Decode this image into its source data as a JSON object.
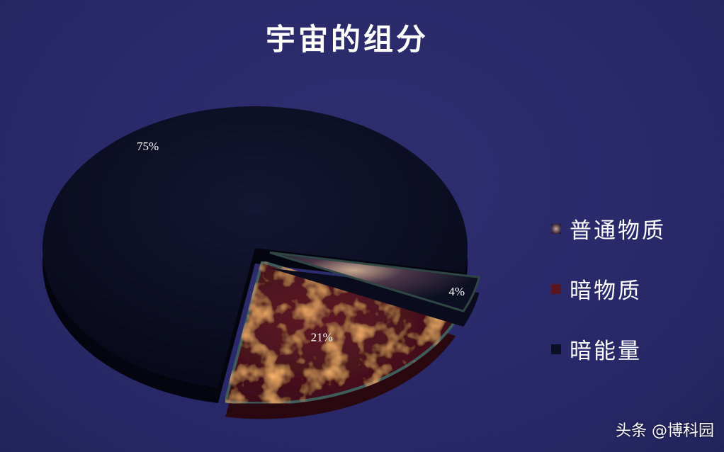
{
  "chart_data": {
    "type": "pie",
    "style": "3d-exploded",
    "title": "宇宙的组分",
    "categories": [
      "普通物质",
      "暗物质",
      "暗能量"
    ],
    "values": [
      4,
      21,
      75
    ],
    "data_labels": [
      "4%",
      "21%",
      "75%"
    ],
    "legend_placement": "right",
    "colors": [
      "#6b4a5a",
      "#5a1522",
      "#0c0f26"
    ]
  },
  "background_color": "#2b2a66",
  "watermark": "头条 @博科园"
}
